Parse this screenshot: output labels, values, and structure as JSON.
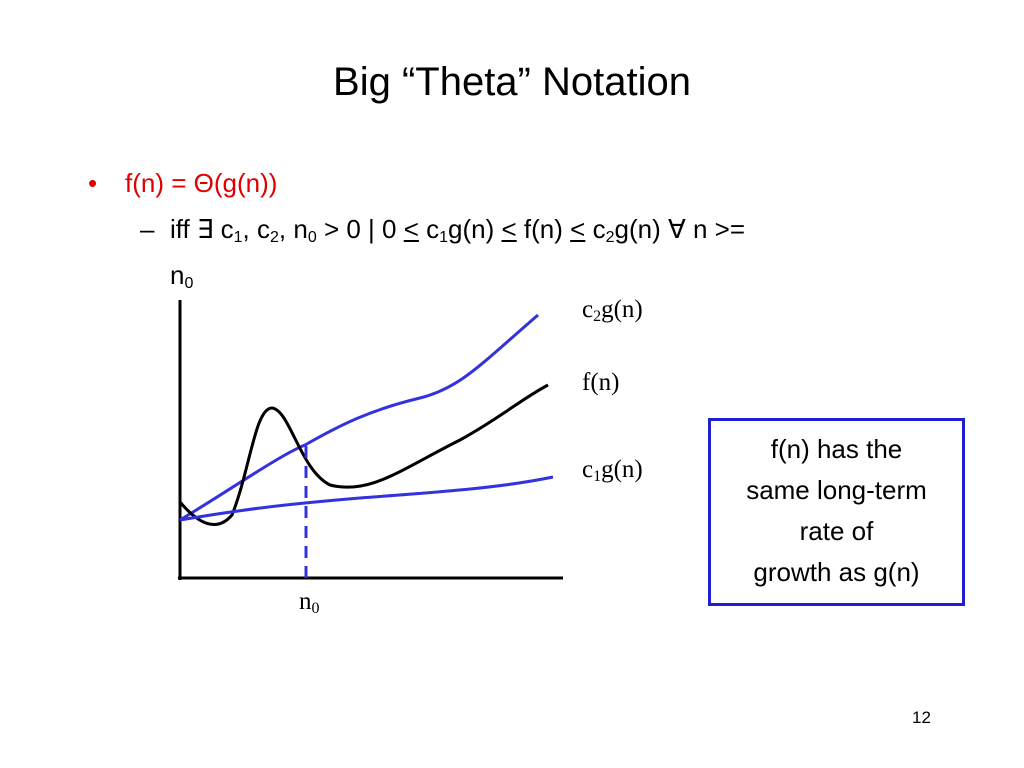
{
  "title": "Big “Theta” Notation",
  "bullet": {
    "marker": "•",
    "text": "f(n) = Θ(g(n))"
  },
  "sub_bullet": {
    "marker": "–",
    "line1": [
      "iff ∃ c",
      "1",
      ", c",
      "2",
      ", n",
      "0",
      " > 0 | 0 ",
      "<",
      " c",
      "1",
      "g(n) ",
      "<",
      " f(n) ",
      "<",
      " c",
      "2",
      "g(n) ∀ n >="
    ],
    "line2": [
      "n",
      "0"
    ]
  },
  "graph": {
    "upper_label": [
      "c",
      "2",
      "g(n)"
    ],
    "middle_label": "f(n)",
    "lower_label": [
      "c",
      "1",
      "g(n)"
    ],
    "x_label": [
      "n",
      "0"
    ]
  },
  "note": [
    "f(n) has the",
    "same long-term",
    "rate of",
    "growth as g(n)"
  ],
  "page_number": "12"
}
